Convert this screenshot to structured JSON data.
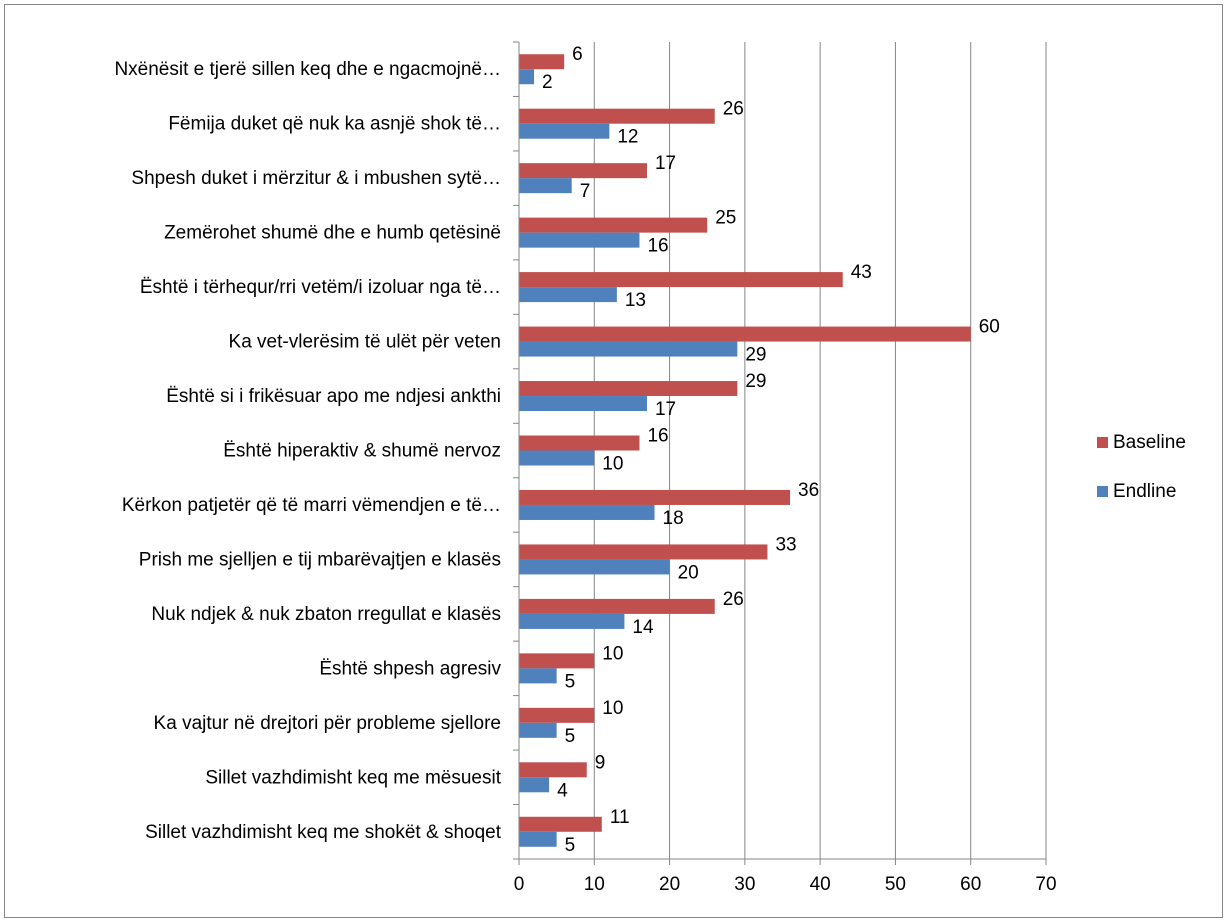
{
  "chart_data": {
    "type": "bar",
    "orientation": "horizontal",
    "title": "",
    "xlabel": "",
    "ylabel": "",
    "xlim": [
      0,
      70
    ],
    "x_ticks": [
      "0",
      "10",
      "20",
      "30",
      "40",
      "50",
      "60",
      "70"
    ],
    "grid": "vertical",
    "legend_position": "right",
    "categories": [
      "Nxënësit e tjerë sillen keq dhe e ngacmojnë…",
      "Fëmija duket që nuk ka asnjë shok të…",
      "Shpesh duket i mërzitur & i mbushen sytë…",
      "Zemërohet shumë dhe e humb qetësinë",
      "Është i tërhequr/rri vetëm/i izoluar nga të…",
      "Ka vet-vlerësim të ulët për veten",
      "Është si i frikësuar apo me ndjesi ankthi",
      "Është hiperaktiv & shumë nervoz",
      "Kërkon patjetër që të marri vëmendjen e të…",
      "Prish me sjelljen e tij mbarëvajtjen e klasës",
      "Nuk ndjek & nuk zbaton rregullat e klasës",
      "Është shpesh agresiv",
      "Ka vajtur në drejtori për probleme sjellore",
      "Sillet vazhdimisht keq me mësuesit",
      "Sillet vazhdimisht keq me shokët & shoqet"
    ],
    "series": [
      {
        "name": "Baseline",
        "color": "#C0504D",
        "values": [
          6,
          26,
          17,
          25,
          43,
          60,
          29,
          16,
          36,
          33,
          26,
          10,
          10,
          9,
          11
        ]
      },
      {
        "name": "Endline",
        "color": "#4F81BD",
        "values": [
          2,
          12,
          7,
          16,
          13,
          29,
          17,
          10,
          18,
          20,
          14,
          5,
          5,
          4,
          5
        ]
      }
    ]
  }
}
